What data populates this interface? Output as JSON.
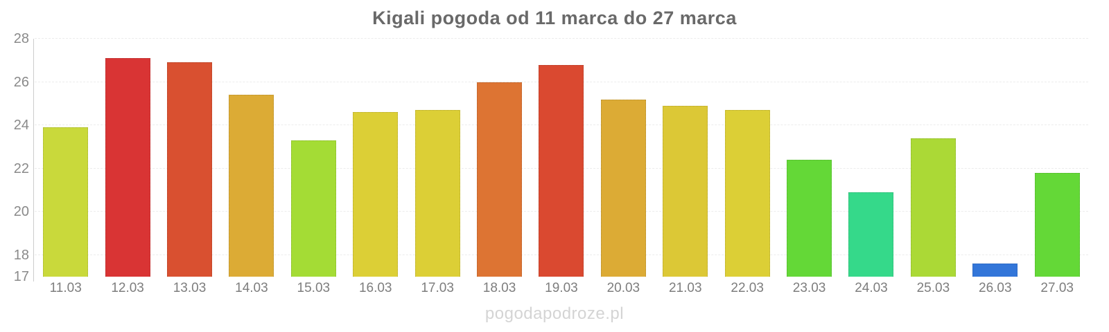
{
  "watermark": "pogodapodroze.pl",
  "colors": {
    "title": "#696969",
    "y_tick": "#8a8a8a",
    "x_label": "#7d7d7d",
    "watermark": "#d4d4d4",
    "axis_line": "#cccccc",
    "gridline": "#ececec"
  },
  "chart_data": {
    "type": "bar",
    "title": "Kigali pogoda od 11 marca do 27 marca",
    "categories": [
      "11.03",
      "12.03",
      "13.03",
      "14.03",
      "15.03",
      "16.03",
      "17.03",
      "18.03",
      "19.03",
      "20.03",
      "21.03",
      "22.03",
      "23.03",
      "24.03",
      "25.03",
      "26.03",
      "27.03"
    ],
    "values": [
      23.9,
      27.1,
      26.9,
      25.4,
      23.3,
      24.6,
      24.7,
      26.0,
      26.8,
      25.2,
      24.9,
      24.7,
      22.4,
      20.9,
      23.4,
      17.6,
      21.8
    ],
    "bar_colors": [
      "#c9d93b",
      "#d93434",
      "#d95030",
      "#dcab35",
      "#a4dc35",
      "#dccf36",
      "#dccf36",
      "#dd7433",
      "#da4930",
      "#dcab35",
      "#dcc836",
      "#dccf36",
      "#64d837",
      "#35d98a",
      "#abd936",
      "#3376d9",
      "#64d837"
    ],
    "xlabel": "",
    "ylabel": "",
    "ylim": [
      17,
      28
    ],
    "yticks": [
      17,
      18,
      20,
      22,
      24,
      26,
      28
    ],
    "grid": "horizontal-dashed",
    "legend": "none"
  }
}
